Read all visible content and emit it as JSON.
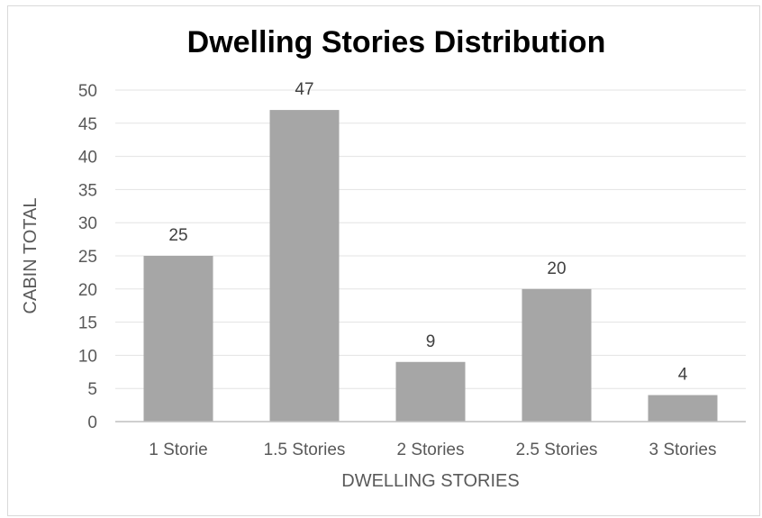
{
  "chart_data": {
    "type": "bar",
    "title": "Dwelling Stories Distribution",
    "xlabel": "DWELLING STORIES",
    "ylabel": "CABIN TOTAL",
    "categories": [
      "1 Storie",
      "1.5 Stories",
      "2 Stories",
      "2.5 Stories",
      "3 Stories"
    ],
    "values": [
      25,
      47,
      9,
      20,
      4
    ],
    "data_labels": [
      "25",
      "47",
      "9",
      "20",
      "4"
    ],
    "ylim": [
      0,
      50
    ],
    "yticks": [
      "0",
      "5",
      "10",
      "15",
      "20",
      "25",
      "30",
      "35",
      "40",
      "45",
      "50"
    ],
    "grid": true,
    "legend": "none",
    "bar_color": "#a6a6a6",
    "grid_color": "#e3e3e3",
    "axis_color": "#bfbfbf",
    "text_color": "#595959",
    "title_color": "#000000"
  }
}
